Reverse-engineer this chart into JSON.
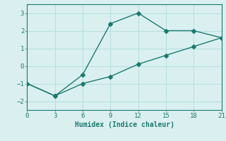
{
  "line1_x": [
    0,
    3,
    6,
    9,
    12,
    15,
    18,
    21
  ],
  "line1_y": [
    -1.0,
    -1.7,
    -0.5,
    2.4,
    3.0,
    2.0,
    2.0,
    1.6
  ],
  "line2_x": [
    0,
    3,
    6,
    9,
    12,
    15,
    18,
    21
  ],
  "line2_y": [
    -1.0,
    -1.7,
    -1.0,
    -0.6,
    0.1,
    0.6,
    1.1,
    1.6
  ],
  "line_color": "#1a7a6e",
  "marker": "D",
  "marker_size": 3,
  "xlabel": "Humidex (Indice chaleur)",
  "xlim": [
    0,
    21
  ],
  "ylim": [
    -2.5,
    3.5
  ],
  "xticks": [
    0,
    3,
    6,
    9,
    12,
    15,
    18,
    21
  ],
  "yticks": [
    -2,
    -1,
    0,
    1,
    2,
    3
  ],
  "bg_color": "#daf0f0",
  "grid_color": "#b8dede"
}
